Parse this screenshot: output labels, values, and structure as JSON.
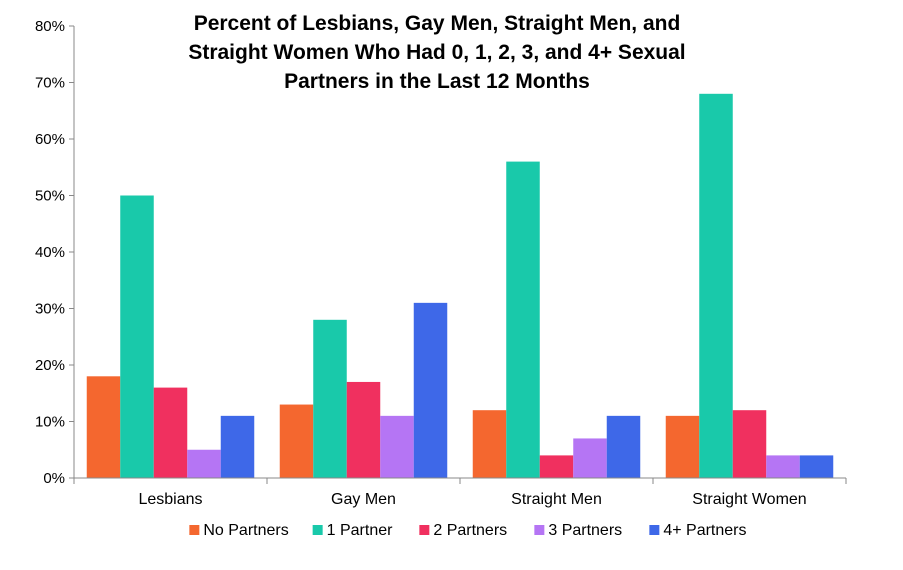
{
  "chart_data": {
    "type": "bar",
    "title_lines": [
      "Percent of Lesbians, Gay Men, Straight Men, and",
      "Straight Women Who Had 0, 1, 2, 3, and 4+ Sexual",
      "Partners in the Last 12 Months"
    ],
    "categories": [
      "Lesbians",
      "Gay Men",
      "Straight Men",
      "Straight Women"
    ],
    "series": [
      {
        "name": "No Partners",
        "color": "#f4672f",
        "values": [
          18,
          13,
          12,
          11
        ]
      },
      {
        "name": "1 Partner",
        "color": "#19c9aa",
        "values": [
          50,
          28,
          56,
          68
        ]
      },
      {
        "name": "2 Partners",
        "color": "#f0305f",
        "values": [
          16,
          17,
          4,
          12
        ]
      },
      {
        "name": "3 Partners",
        "color": "#b575f4",
        "values": [
          5,
          11,
          7,
          4
        ]
      },
      {
        "name": "4+ Partners",
        "color": "#3e68e8",
        "values": [
          11,
          31,
          11,
          4
        ]
      }
    ],
    "y_ticks": [
      "0%",
      "10%",
      "20%",
      "30%",
      "40%",
      "50%",
      "60%",
      "70%",
      "80%"
    ],
    "ylim": [
      0,
      80
    ],
    "xlabel": "",
    "ylabel": "",
    "grid": false,
    "legend_position": "bottom"
  }
}
